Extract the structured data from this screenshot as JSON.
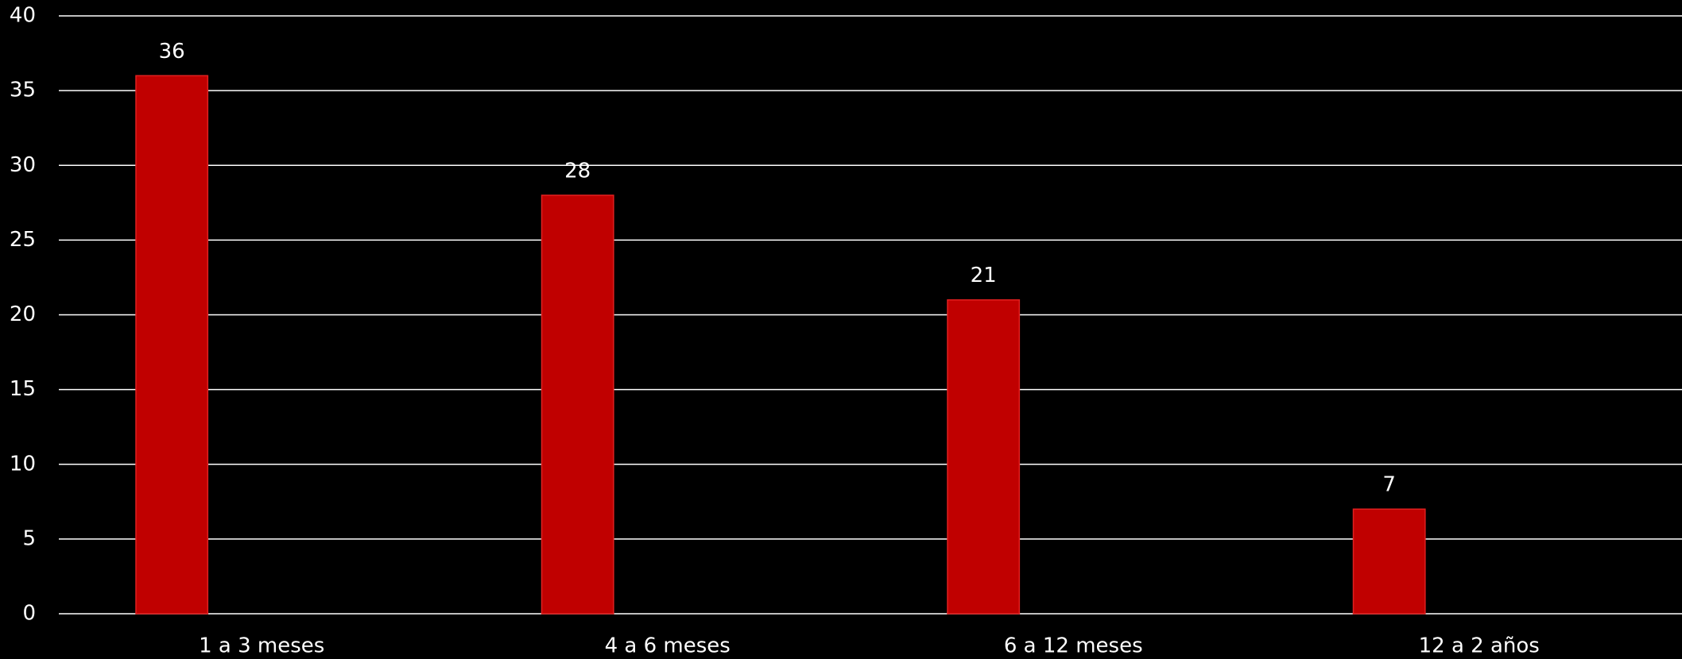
{
  "chart_data": {
    "type": "bar",
    "categories": [
      "1 a 3 meses",
      "4 a 6 meses",
      "6 a 12 meses",
      "12 a 2 años"
    ],
    "values": [
      36,
      28,
      21,
      7
    ],
    "color": "#c00000",
    "ylim": [
      0,
      40
    ],
    "yticks": [
      0,
      5,
      10,
      15,
      20,
      25,
      30,
      35,
      40
    ],
    "grid": true
  }
}
